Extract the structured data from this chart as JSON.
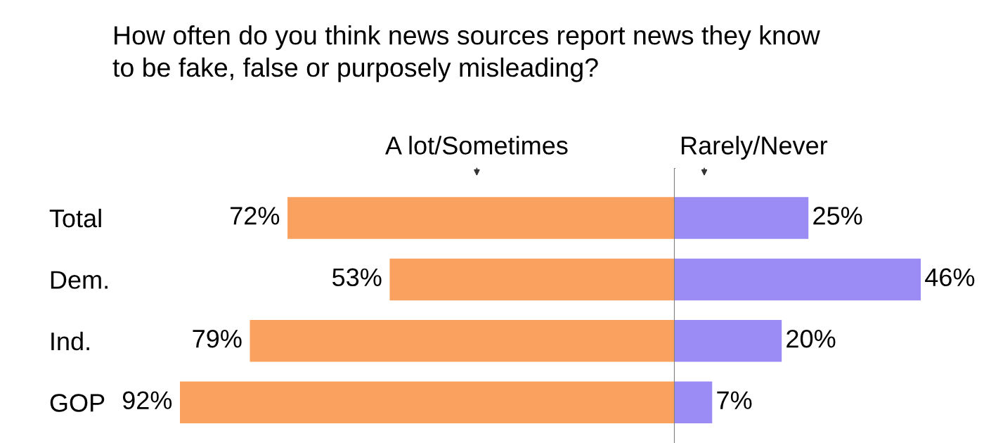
{
  "chart_data": [
    {
      "type": "bar",
      "orientation": "horizontal",
      "tick_labels": "y",
      "title": "How often do you think news sources report news they know\nto be fake, false or purposely misleading?",
      "categories": [
        "Total",
        "Dem.",
        "Ind.",
        "GOP"
      ],
      "xlim": [
        92,
        0
      ],
      "series": [
        {
          "name": "A lot/Sometimes",
          "color": "#fba15f",
          "values": [
            72,
            53,
            79,
            92
          ],
          "value_labels": [
            "72%",
            "53%",
            "79%",
            "92%"
          ]
        }
      ]
    },
    {
      "type": "bar",
      "orientation": "horizontal",
      "categories": [
        null,
        null,
        null,
        null
      ],
      "xlim": [
        0,
        46
      ],
      "series": [
        {
          "name": "Rarely/Never",
          "color": "#9b8cf5",
          "values": [
            25,
            46,
            20,
            7
          ],
          "value_labels": [
            "25%",
            "46%",
            "20%",
            "7%"
          ]
        }
      ]
    }
  ]
}
